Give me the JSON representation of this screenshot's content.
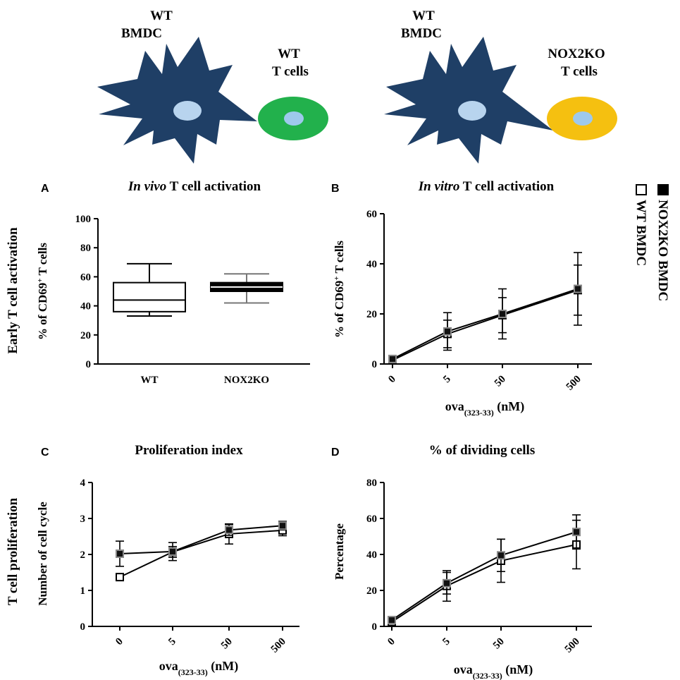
{
  "schematic": {
    "left": {
      "dc_label_1": "WT",
      "dc_label_2": "BMDC",
      "t_label_1": "WT",
      "t_label_2": "T cells",
      "t_color": "#22b14c",
      "t_nucleus": "#9ec9ec"
    },
    "right": {
      "dc_label_1": "WT",
      "dc_label_2": "BMDC",
      "t_label_1": "NOX2KO",
      "t_label_2": "T cells",
      "t_color": "#f5c010",
      "t_nucleus": "#9ec9ec"
    },
    "dc_color": "#1f3f66",
    "dc_nucleus": "#b8d4ee"
  },
  "legend": {
    "items": [
      {
        "label": "NOX2KO BMDC",
        "marker": "filled-square"
      },
      {
        "label": "WT BMDC",
        "marker": "open-square"
      }
    ]
  },
  "chart_data": [
    {
      "panel": "A",
      "type": "box",
      "title_italic": "In vivo",
      "title_rest": " T cell activation",
      "row_label": "Early T cell activation",
      "ylabel_pre": "% of CD69",
      "ylabel_sup": "+",
      "ylabel_post": " T cells",
      "ylim": [
        0,
        100
      ],
      "yticks": [
        "0",
        "20",
        "40",
        "60",
        "80",
        "100"
      ],
      "categories": [
        "WT",
        "NOX2KO"
      ],
      "boxes": [
        {
          "name": "WT",
          "min": 33,
          "q1": 36,
          "median": 44,
          "q3": 56,
          "max": 69
        },
        {
          "name": "NOX2KO",
          "min": 42,
          "q1": 50,
          "median": 53,
          "q3": 56,
          "max": 62
        }
      ]
    },
    {
      "panel": "B",
      "type": "line",
      "title_italic": "In vitro",
      "title_rest": " T cell activation",
      "ylabel_pre": "% of CD69",
      "ylabel_sup": "+",
      "ylabel_post": " T cells",
      "xlabel_pre": "ova",
      "xlabel_sub": "(323-33)",
      "xlabel_post": " (nM)",
      "x": [
        "0",
        "5",
        "50",
        "500"
      ],
      "ylim": [
        0,
        60
      ],
      "yticks": [
        "0",
        "20",
        "40",
        "60"
      ],
      "series": [
        {
          "name": "NOX2KO BMDC",
          "values": [
            2,
            13,
            20,
            30
          ],
          "err": [
            0.5,
            7.5,
            10,
            14.5
          ]
        },
        {
          "name": "WT BMDC",
          "values": [
            1.5,
            12,
            19.5,
            29.5
          ],
          "err": [
            0.5,
            5.5,
            7,
            10
          ]
        }
      ]
    },
    {
      "panel": "C",
      "type": "line",
      "title": "Proliferation index",
      "row_label": "T cell proliferation",
      "ylabel": "Number of cell cycle",
      "xlabel_pre": "ova",
      "xlabel_sub": "(323-33)",
      "xlabel_post": " (nM)",
      "x": [
        "0",
        "5",
        "50",
        "500"
      ],
      "ylim": [
        0,
        4
      ],
      "yticks": [
        "0",
        "1",
        "2",
        "3",
        "4"
      ],
      "series": [
        {
          "name": "NOX2KO BMDC",
          "values": [
            2.02,
            2.08,
            2.68,
            2.8
          ],
          "err": [
            0.35,
            0.25,
            0.15,
            0.12
          ]
        },
        {
          "name": "WT BMDC",
          "values": [
            1.37,
            2.07,
            2.57,
            2.67
          ],
          "err": [
            0.05,
            0.15,
            0.28,
            0.15
          ]
        }
      ]
    },
    {
      "panel": "D",
      "type": "line",
      "title": "% of dividing cells",
      "ylabel": "Percentage",
      "xlabel_pre": "ova",
      "xlabel_sub": "(323-33)",
      "xlabel_post": " (nM)",
      "x": [
        "0",
        "5",
        "50",
        "500"
      ],
      "ylim": [
        0,
        80
      ],
      "yticks": [
        "0",
        "20",
        "40",
        "60",
        "80"
      ],
      "series": [
        {
          "name": "NOX2KO BMDC",
          "values": [
            3.5,
            24,
            39.5,
            52.5
          ],
          "err": [
            1,
            6,
            9,
            9.5
          ]
        },
        {
          "name": "WT BMDC",
          "values": [
            2.5,
            22.5,
            36.5,
            45.5
          ],
          "err": [
            1,
            8.5,
            12,
            13.5
          ]
        }
      ]
    }
  ]
}
